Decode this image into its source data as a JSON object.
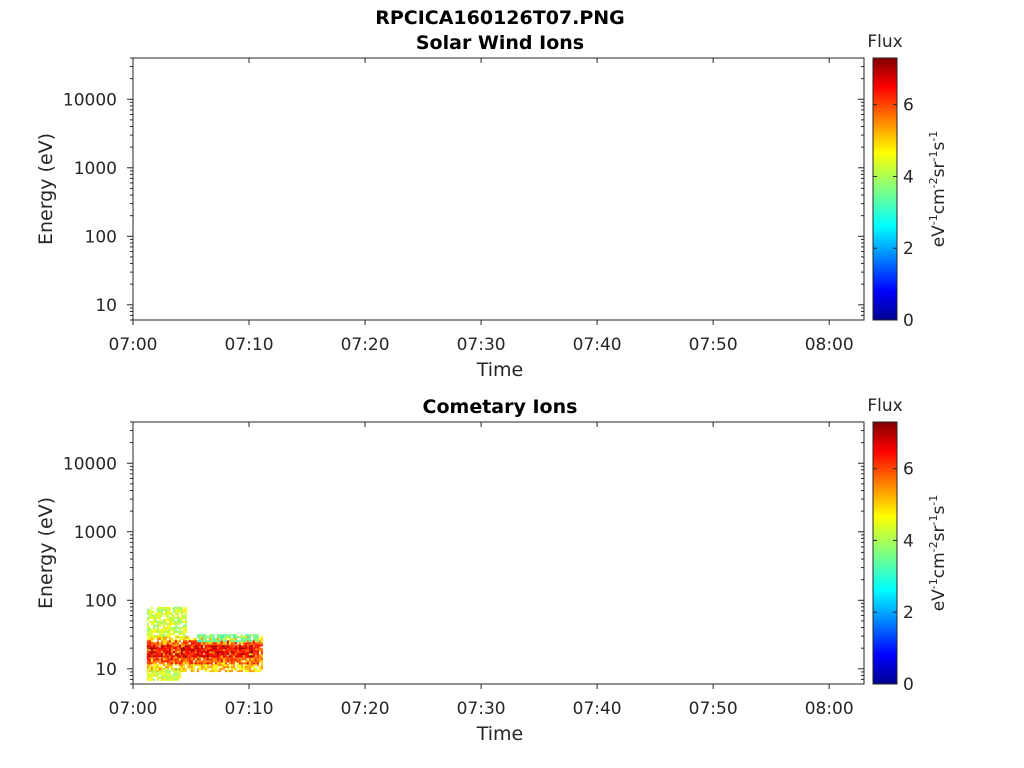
{
  "figure_title": "RPCICA160126T07.PNG",
  "chart_data": [
    {
      "type": "heatmap",
      "title": "Solar Wind Ions",
      "xlabel": "Time",
      "ylabel": "Energy (eV)",
      "x_range": [
        "07:00",
        "08:03"
      ],
      "x_ticks": [
        "07:00",
        "07:10",
        "07:20",
        "07:30",
        "07:40",
        "07:50",
        "08:00"
      ],
      "y_scale": "log",
      "y_range": [
        6,
        40000
      ],
      "y_ticks": [
        "10",
        "100",
        "1000",
        "10000"
      ],
      "colorbar": {
        "title": "Flux",
        "label": "eV-1cm-2sr-1s-1",
        "min": 0,
        "max": 7.3,
        "ticks": [
          "0",
          "2",
          "4",
          "6"
        ]
      },
      "regions": []
    },
    {
      "type": "heatmap",
      "title": "Cometary Ions",
      "xlabel": "Time",
      "ylabel": "Energy (eV)",
      "x_range": [
        "07:00",
        "08:03"
      ],
      "x_ticks": [
        "07:00",
        "07:10",
        "07:20",
        "07:30",
        "07:40",
        "07:50",
        "08:00"
      ],
      "y_scale": "log",
      "y_range": [
        6,
        40000
      ],
      "y_ticks": [
        "10",
        "100",
        "1000",
        "10000"
      ],
      "colorbar": {
        "title": "Flux",
        "label": "eV-1cm-2sr-1s-1",
        "min": 0,
        "max": 7.3,
        "ticks": [
          "0",
          "2",
          "4",
          "6"
        ]
      },
      "regions": [
        {
          "t_start": 1.2,
          "t_end": 11.1,
          "e_low": 9,
          "e_high": 30,
          "flux": 5.0
        },
        {
          "t_start": 1.2,
          "t_end": 11.1,
          "e_low": 12,
          "e_high": 26,
          "flux": 6.0
        },
        {
          "t_start": 1.2,
          "t_end": 10.5,
          "e_low": 15,
          "e_high": 22,
          "flux": 6.6
        },
        {
          "t_start": 1.2,
          "t_end": 4.5,
          "e_low": 30,
          "e_high": 80,
          "flux": 4.3
        },
        {
          "t_start": 1.2,
          "t_end": 4.0,
          "e_low": 7,
          "e_high": 10,
          "flux": 4.3
        },
        {
          "t_start": 5.5,
          "t_end": 10.8,
          "e_low": 26,
          "e_high": 32,
          "flux": 3.5
        }
      ]
    }
  ]
}
